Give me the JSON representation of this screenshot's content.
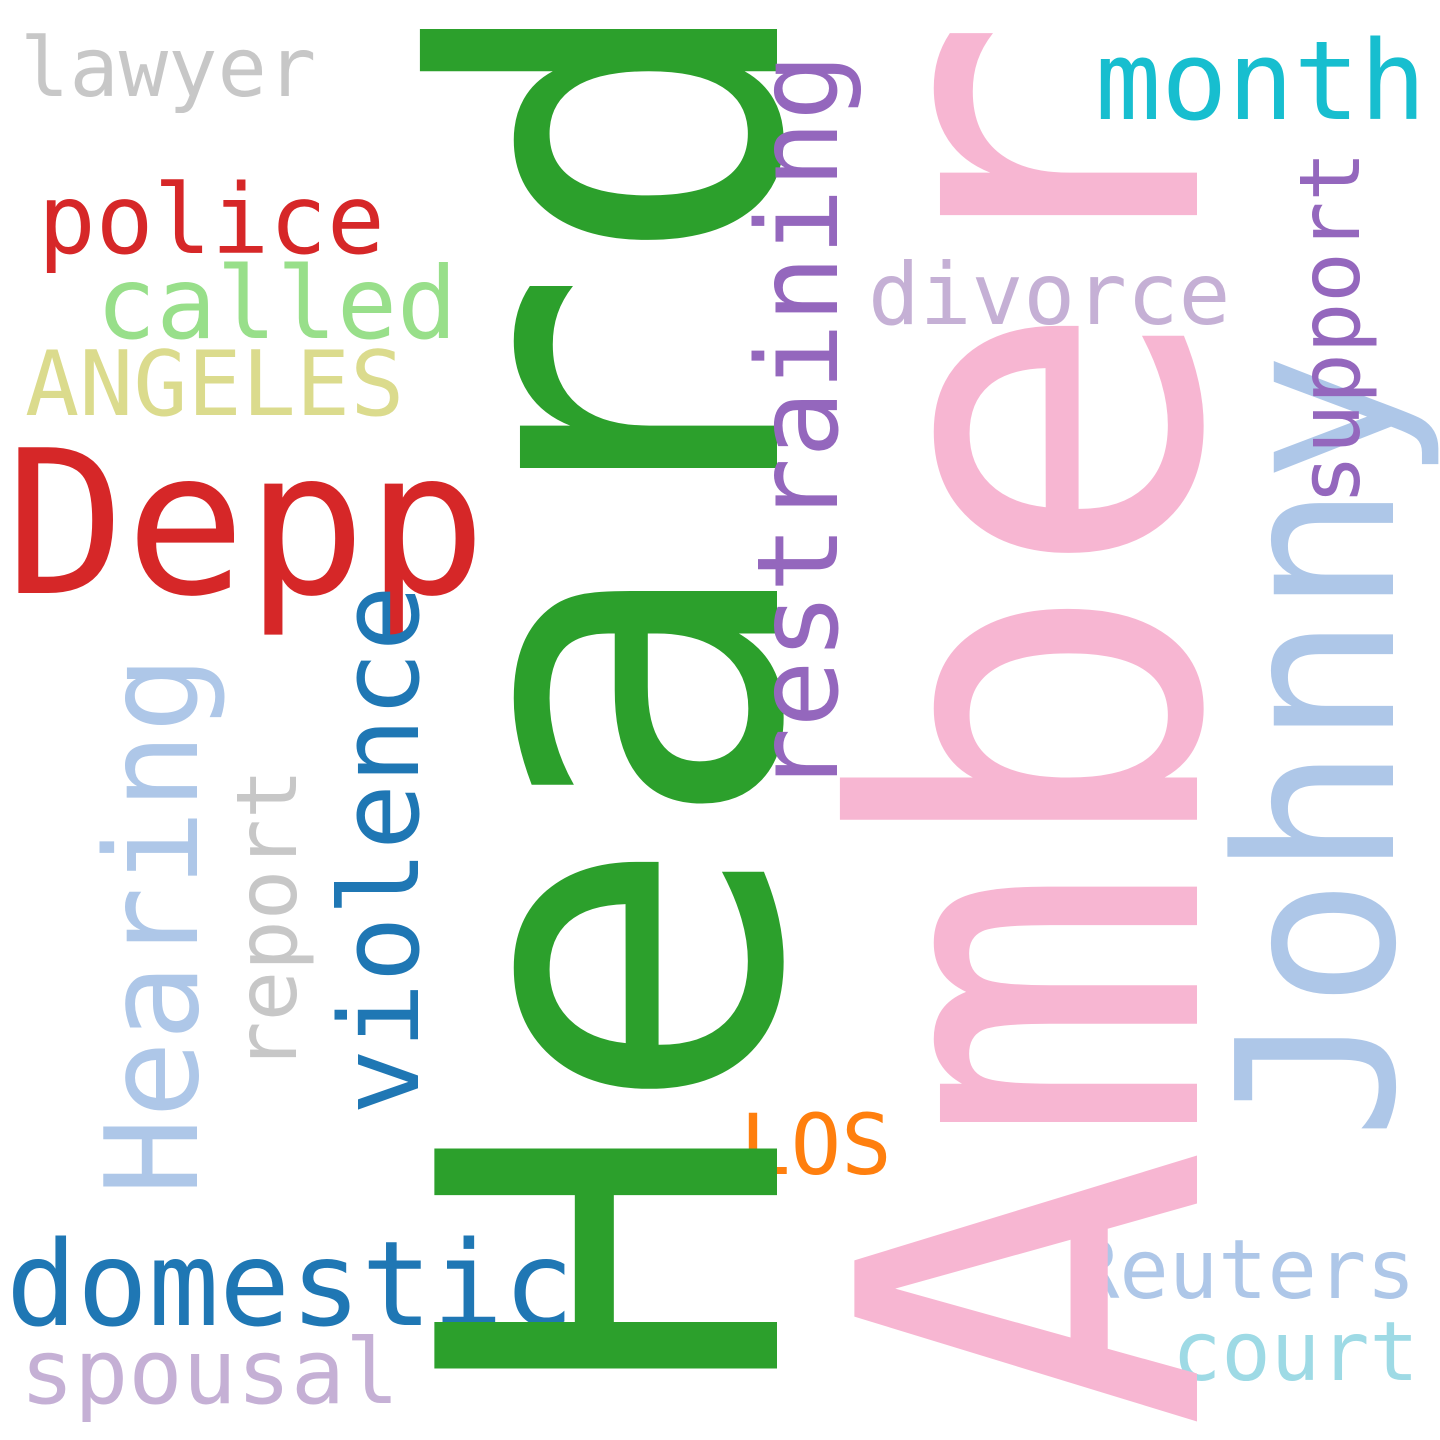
{
  "words": {
    "heard": {
      "text": "Heard",
      "color": "#2ca02c"
    },
    "amber": {
      "text": "Amber",
      "color": "#f7b6d2"
    },
    "depp": {
      "text": "Depp",
      "color": "#d62728"
    },
    "johnny": {
      "text": "Johnny",
      "color": "#aec7e8"
    },
    "restraining": {
      "text": "restraining",
      "color": "#9467bd"
    },
    "domestic": {
      "text": "domestic",
      "color": "#1f77b4"
    },
    "violence": {
      "text": "violence",
      "color": "#1f77b4"
    },
    "hearing": {
      "text": "Hearing",
      "color": "#aec7e8"
    },
    "month": {
      "text": "month",
      "color": "#17becf"
    },
    "police": {
      "text": "police",
      "color": "#d62728"
    },
    "called": {
      "text": "called",
      "color": "#98df8a"
    },
    "angeles": {
      "text": "ANGELES",
      "color": "#dbdb8d"
    },
    "divorce": {
      "text": "divorce",
      "color": "#c5b0d5"
    },
    "support": {
      "text": "support",
      "color": "#9467bd"
    },
    "lawyer": {
      "text": "lawyer",
      "color": "#c7c7c7"
    },
    "report": {
      "text": "report",
      "color": "#c7c7c7"
    },
    "los": {
      "text": "LOS",
      "color": "#ff7f0e"
    },
    "reuters": {
      "text": "Reuters",
      "color": "#aec7e8"
    },
    "court": {
      "text": "court",
      "color": "#9edae5"
    },
    "spousal": {
      "text": "spousal",
      "color": "#c5b0d5"
    }
  }
}
